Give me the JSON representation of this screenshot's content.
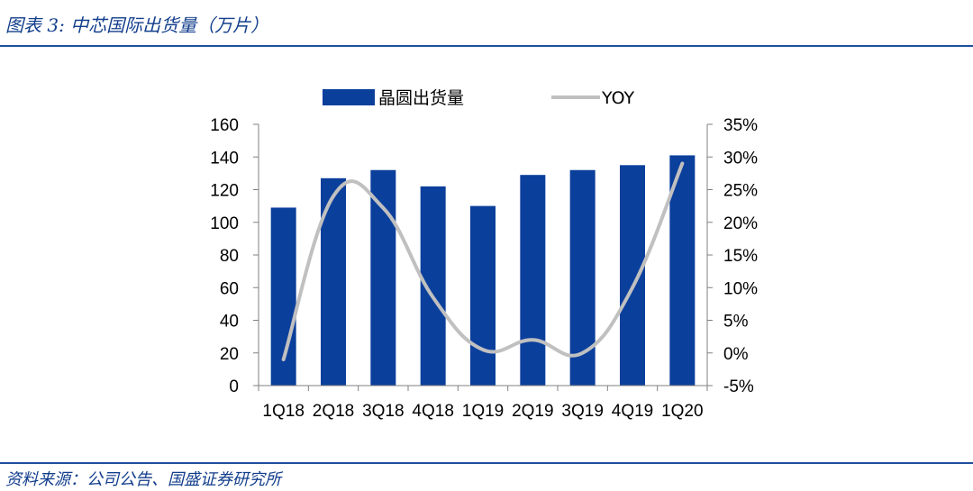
{
  "header": {
    "title": "图表 3:  中芯国际出货量（万片）"
  },
  "footer": {
    "source": "资料来源：公司公告、国盛证券研究所"
  },
  "colors": {
    "bar": "#0b3f9c",
    "line": "#c0c0c0",
    "rule": "#1f4e9c",
    "title_text": "#123e8c"
  },
  "chart_data": {
    "type": "bar",
    "categories": [
      "1Q18",
      "2Q18",
      "3Q18",
      "4Q18",
      "1Q19",
      "2Q19",
      "3Q19",
      "4Q19",
      "1Q20"
    ],
    "series": [
      {
        "name": "晶圆出货量",
        "type": "bar",
        "axis": "left",
        "values": [
          109,
          127,
          132,
          122,
          110,
          129,
          132,
          135,
          141
        ]
      },
      {
        "name": "YOY",
        "type": "line",
        "axis": "right",
        "values": [
          -1,
          24,
          22.2,
          8.5,
          0.5,
          2,
          0,
          10,
          29
        ]
      }
    ],
    "y_left": {
      "ylim": [
        0,
        160
      ],
      "ticks": [
        0,
        20,
        40,
        60,
        80,
        100,
        120,
        140,
        160
      ],
      "tick_labels": [
        "0",
        "20",
        "40",
        "60",
        "80",
        "100",
        "120",
        "140",
        "160"
      ]
    },
    "y_right": {
      "ylim": [
        -5,
        35
      ],
      "ticks": [
        -5,
        0,
        5,
        10,
        15,
        20,
        25,
        30,
        35
      ],
      "tick_labels": [
        "-5%",
        "0%",
        "5%",
        "10%",
        "15%",
        "20%",
        "25%",
        "30%",
        "35%"
      ]
    },
    "grid": false,
    "legend": "top-center"
  }
}
